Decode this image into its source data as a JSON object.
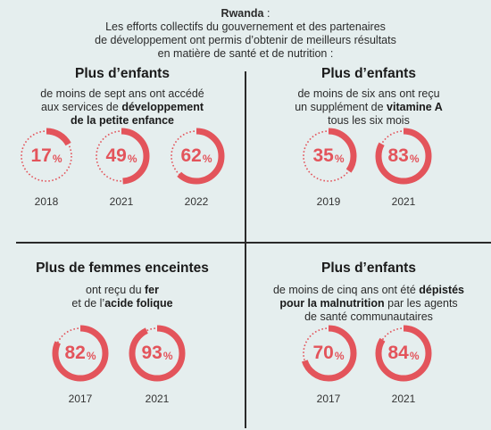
{
  "header": {
    "country": "Rwanda",
    "country_suffix": " :",
    "lines": [
      "Les efforts collectifs du gouvernement et des partenaires",
      "de développement ont permis d’obtenir de meilleurs résultats",
      "en matière de santé et de nutrition :"
    ]
  },
  "colors": {
    "accent": "#e3545b",
    "track": "#e3545b",
    "background": "#e5eeee"
  },
  "panels": [
    {
      "title": "Plus d’enfants",
      "desc_lines": [
        [
          {
            "t": "de moins de sept ans ont accédé",
            "b": false
          }
        ],
        [
          {
            "t": "aux services de ",
            "b": false
          },
          {
            "t": "développement",
            "b": true
          }
        ],
        [
          {
            "t": "de la petite enfance",
            "b": true
          }
        ]
      ]
    },
    {
      "title": "Plus d’enfants",
      "desc_lines": [
        [
          {
            "t": "de moins de six ans ont reçu",
            "b": false
          }
        ],
        [
          {
            "t": "un supplément de ",
            "b": false
          },
          {
            "t": "vitamine A",
            "b": true
          }
        ],
        [
          {
            "t": "tous les six mois",
            "b": false
          }
        ]
      ]
    },
    {
      "title": "Plus de femmes enceintes",
      "desc_lines": [
        [
          {
            "t": "ont reçu du ",
            "b": false
          },
          {
            "t": "fer",
            "b": true
          }
        ],
        [
          {
            "t": "et de l’",
            "b": false
          },
          {
            "t": "acide folique",
            "b": true
          }
        ]
      ]
    },
    {
      "title": "Plus d’enfants",
      "desc_lines": [
        [
          {
            "t": "de moins de cinq ans ont été ",
            "b": false
          },
          {
            "t": "dépistés",
            "b": true
          }
        ],
        [
          {
            "t": "pour la malnutrition",
            "b": true
          },
          {
            "t": " par les agents",
            "b": false
          }
        ],
        [
          {
            "t": "de santé communautaires",
            "b": false
          }
        ]
      ]
    }
  ],
  "chart_data": {
    "type": "donut",
    "unit": "%",
    "groups": [
      {
        "panel": 0,
        "years": [
          "2018",
          "2021",
          "2022"
        ],
        "values": [
          17,
          49,
          62
        ]
      },
      {
        "panel": 1,
        "years": [
          "2019",
          "2021"
        ],
        "values": [
          35,
          83
        ]
      },
      {
        "panel": 2,
        "years": [
          "2017",
          "2021"
        ],
        "values": [
          82,
          93
        ]
      },
      {
        "panel": 3,
        "years": [
          "2017",
          "2021"
        ],
        "values": [
          70,
          84
        ]
      }
    ]
  }
}
